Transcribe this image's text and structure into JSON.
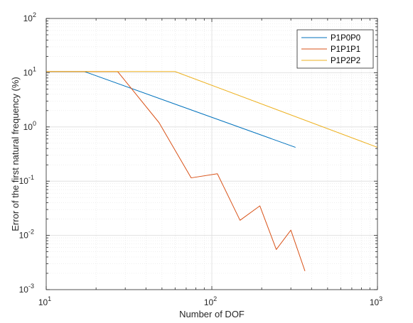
{
  "chart_data": {
    "type": "line",
    "xscale": "log",
    "yscale": "log",
    "xlim": [
      10,
      1000
    ],
    "ylim": [
      0.001,
      100
    ],
    "xlabel": "Number of DOF",
    "ylabel": "Error of the first natural frequency (%)",
    "xticks": [
      {
        "base": "10",
        "exp": "1",
        "value": 10
      },
      {
        "base": "10",
        "exp": "2",
        "value": 100
      },
      {
        "base": "10",
        "exp": "3",
        "value": 1000
      }
    ],
    "yticks": [
      {
        "base": "10",
        "exp": "-3",
        "value": 0.001
      },
      {
        "base": "10",
        "exp": "-2",
        "value": 0.01
      },
      {
        "base": "10",
        "exp": "-1",
        "value": 0.1
      },
      {
        "base": "10",
        "exp": "0",
        "value": 1
      },
      {
        "base": "10",
        "exp": "1",
        "value": 10
      },
      {
        "base": "10",
        "exp": "2",
        "value": 100
      }
    ],
    "grid": true,
    "minor_grid": true,
    "legend_position": "top-right",
    "series": [
      {
        "name": "P1P0P0",
        "color": "#0072BD",
        "x": [
          10,
          17,
          320
        ],
        "y": [
          10.5,
          10.5,
          0.42
        ]
      },
      {
        "name": "P1P1P1",
        "color": "#D95319",
        "x": [
          10,
          17,
          27,
          48,
          75,
          108,
          148,
          195,
          245,
          300,
          365
        ],
        "y": [
          10.5,
          10.5,
          10.5,
          1.2,
          0.115,
          0.137,
          0.019,
          0.035,
          0.0055,
          0.0125,
          0.0022
        ]
      },
      {
        "name": "P1P2P2",
        "color": "#EDB120",
        "x": [
          10,
          60,
          1000
        ],
        "y": [
          10.5,
          10.5,
          0.42
        ]
      }
    ]
  }
}
